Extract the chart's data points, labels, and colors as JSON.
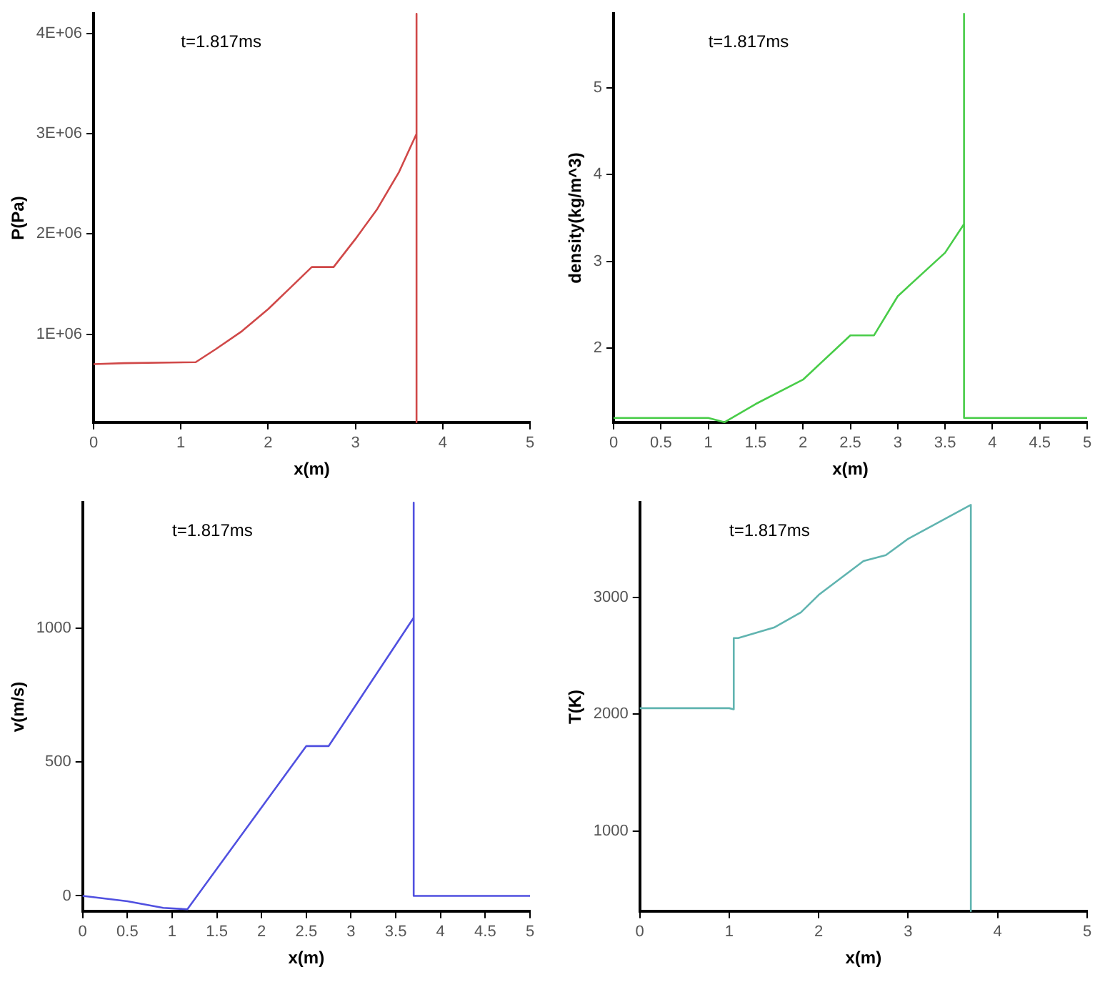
{
  "chart_data": [
    {
      "type": "line",
      "xlabel": "x(m)",
      "ylabel": "P(Pa)",
      "annotations": [
        "t=1.817ms"
      ],
      "xlim": [
        0,
        5
      ],
      "xticks": [
        0,
        1,
        2,
        3,
        4,
        5
      ],
      "ylim": [
        120000,
        4200000
      ],
      "yticks": [
        {
          "value": 1000000,
          "label": "1E+06"
        },
        {
          "value": 2000000,
          "label": "2E+06"
        },
        {
          "value": 3000000,
          "label": "3E+06"
        },
        {
          "value": 4000000,
          "label": "4E+06"
        }
      ],
      "grid": false,
      "legend": false,
      "marker": "none",
      "line_style": "solid",
      "series": [
        {
          "color": "#d04848",
          "x": [
            0,
            0.35,
            1.17,
            1.4,
            1.7,
            2.0,
            2.25,
            2.5,
            2.75,
            3.0,
            3.25,
            3.5,
            3.7,
            3.7,
            3.7
          ],
          "values": [
            700000,
            710000,
            720000,
            850000,
            1030000,
            1250000,
            1460000,
            1670000,
            1670000,
            1950000,
            2250000,
            2620000,
            3000000,
            4200000,
            120000
          ]
        }
      ]
    },
    {
      "type": "line",
      "xlabel": "x(m)",
      "ylabel": "density(kg/m^3)",
      "annotations": [
        "t=1.817ms"
      ],
      "xlim": [
        0,
        5
      ],
      "xticks": [
        0,
        0.5,
        1,
        1.5,
        2,
        2.5,
        3,
        3.5,
        4,
        4.5,
        5
      ],
      "ylim": [
        1.15,
        5.85
      ],
      "yticks": [
        2,
        3,
        4,
        5
      ],
      "grid": false,
      "legend": false,
      "marker": "none",
      "line_style": "solid",
      "series": [
        {
          "color": "#48cc48",
          "x": [
            0,
            1.0,
            1.17,
            1.5,
            2.0,
            2.5,
            2.75,
            3.0,
            3.5,
            3.7,
            3.7,
            3.7,
            5
          ],
          "values": [
            1.2,
            1.2,
            1.15,
            1.36,
            1.64,
            2.15,
            2.15,
            2.6,
            3.1,
            3.43,
            5.85,
            1.2,
            1.2
          ]
        }
      ]
    },
    {
      "type": "line",
      "xlabel": "x(m)",
      "ylabel": "v(m/s)",
      "annotations": [
        "t=1.817ms"
      ],
      "xlim": [
        0,
        5
      ],
      "xticks": [
        0,
        0.5,
        1,
        1.5,
        2,
        2.5,
        3,
        3.5,
        4,
        4.5,
        5
      ],
      "ylim": [
        -57,
        1470
      ],
      "yticks": [
        0,
        500,
        1000
      ],
      "grid": false,
      "legend": false,
      "marker": "none",
      "line_style": "solid",
      "series": [
        {
          "color": "#5050e0",
          "x": [
            0,
            0.5,
            0.9,
            1.17,
            2.5,
            2.75,
            3.7,
            3.7,
            3.7,
            5
          ],
          "values": [
            0,
            -20,
            -45,
            -50,
            560,
            560,
            1040,
            1470,
            0,
            0
          ]
        }
      ]
    },
    {
      "type": "line",
      "xlabel": "x(m)",
      "ylabel": "T(K)",
      "annotations": [
        "t=1.817ms"
      ],
      "xlim": [
        0,
        5
      ],
      "xticks": [
        0,
        1,
        2,
        3,
        4,
        5
      ],
      "ylim": [
        313,
        3810
      ],
      "yticks": [
        1000,
        2000,
        3000
      ],
      "grid": false,
      "legend": false,
      "marker": "none",
      "line_style": "solid",
      "series": [
        {
          "color": "#60b4b0",
          "x": [
            0,
            1.0,
            1.05,
            1.05,
            1.1,
            1.5,
            1.8,
            2.0,
            2.5,
            2.75,
            3.0,
            3.7,
            3.7
          ],
          "values": [
            2050,
            2050,
            2040,
            2650,
            2650,
            2740,
            2870,
            3020,
            3310,
            3360,
            3500,
            3790,
            313
          ]
        }
      ]
    }
  ]
}
